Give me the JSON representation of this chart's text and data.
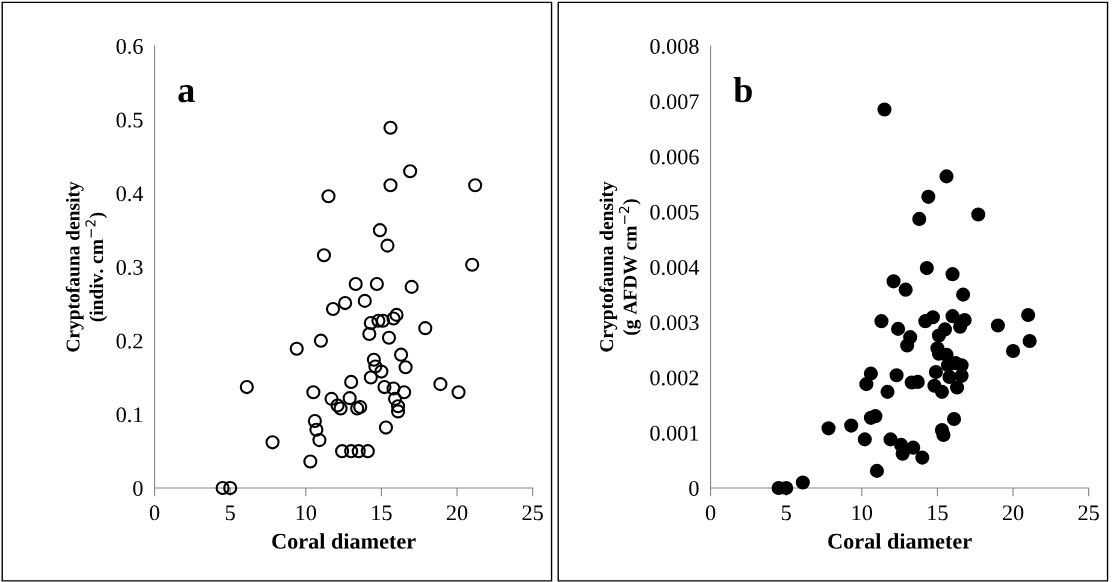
{
  "chart_data": [
    {
      "type": "scatter",
      "xlabel": "Coral diameter",
      "ylabel": "Cryptofauna density\n(indiv. cm$^{−2}$)",
      "annotations": [
        "a"
      ],
      "marker": "circle-open",
      "grid": false,
      "xlim": [
        0,
        25
      ],
      "xticks": [
        0,
        5,
        10,
        15,
        20,
        25
      ],
      "ylim": [
        0,
        0.6
      ],
      "yticks": [
        0,
        0.1,
        0.2,
        0.3,
        0.4,
        0.5,
        0.6
      ],
      "series": [
        {
          "color": "#000000",
          "x": [
            4.5,
            5,
            6.1,
            7.8,
            9.4,
            10.3,
            10.5,
            10.6,
            10.7,
            10.9,
            11,
            11.2,
            11.5,
            11.7,
            11.8,
            12.1,
            12.3,
            12.4,
            12.6,
            12.9,
            13,
            13,
            13.3,
            13.4,
            13.5,
            13.6,
            13.9,
            14.1,
            14.2,
            14.3,
            14.3,
            14.5,
            14.6,
            14.7,
            14.8,
            14.9,
            15,
            15.1,
            15.2,
            15.3,
            15.4,
            15.5,
            15.6,
            15.6,
            15.8,
            15.8,
            15.9,
            16,
            16.1,
            16.1,
            16.3,
            16.5,
            16.6,
            16.9,
            17,
            17.9,
            18.9,
            20.1,
            21,
            21.2
          ],
          "values": [
            0,
            0,
            0.137,
            0.062,
            0.189,
            0.036,
            0.13,
            0.091,
            0.079,
            0.065,
            0.2,
            0.316,
            0.396,
            0.121,
            0.243,
            0.112,
            0.108,
            0.05,
            0.251,
            0.122,
            0.144,
            0.05,
            0.277,
            0.108,
            0.05,
            0.11,
            0.254,
            0.05,
            0.209,
            0.224,
            0.15,
            0.174,
            0.165,
            0.277,
            0.227,
            0.35,
            0.158,
            0.227,
            0.137,
            0.082,
            0.329,
            0.204,
            0.489,
            0.411,
            0.23,
            0.135,
            0.121,
            0.235,
            0.111,
            0.104,
            0.181,
            0.13,
            0.164,
            0.43,
            0.273,
            0.217,
            0.141,
            0.13,
            0.303,
            0.411
          ]
        }
      ]
    },
    {
      "type": "scatter",
      "xlabel": "Coral diameter",
      "ylabel": "Cryptofauna density\n(g AFDW cm$^{−2}$)",
      "annotations": [
        "b"
      ],
      "marker": "circle",
      "grid": false,
      "xlim": [
        0,
        25
      ],
      "xticks": [
        0,
        5,
        10,
        15,
        20,
        25
      ],
      "ylim": [
        0,
        0.008
      ],
      "yticks": [
        0,
        0.001,
        0.002,
        0.003,
        0.004,
        0.005,
        0.006,
        0.007,
        0.008
      ],
      "series": [
        {
          "color": "#000000",
          "x": [
            4.5,
            5,
            6.1,
            7.8,
            9.3,
            10.2,
            10.3,
            10.6,
            10.6,
            10.9,
            11,
            11.3,
            11.5,
            11.7,
            11.9,
            12.1,
            12.3,
            12.4,
            12.6,
            12.7,
            12.9,
            13,
            13.2,
            13.3,
            13.4,
            13.7,
            13.8,
            14,
            14.2,
            14.3,
            14.4,
            14.7,
            14.8,
            14.9,
            15,
            15.1,
            15.1,
            15.3,
            15.3,
            15.4,
            15.5,
            15.6,
            15.6,
            15.7,
            15.8,
            16,
            16,
            16.1,
            16.2,
            16.3,
            16.5,
            16.6,
            16.6,
            16.7,
            16.8,
            17.7,
            19,
            20,
            21,
            21.1
          ],
          "values": [
            0,
            0,
            0.0001,
            0.00108,
            0.00113,
            0.00088,
            0.00188,
            0.00207,
            0.00127,
            0.0013,
            0.00031,
            0.00302,
            0.00685,
            0.00174,
            0.00088,
            0.00374,
            0.00204,
            0.00288,
            0.00078,
            0.00062,
            0.00359,
            0.00258,
            0.00273,
            0.00191,
            0.00073,
            0.00192,
            0.00487,
            0.00055,
            0.00302,
            0.00398,
            0.00527,
            0.00309,
            0.00185,
            0.0021,
            0.00253,
            0.00243,
            0.00276,
            0.00174,
            0.00105,
            0.00096,
            0.00287,
            0.00241,
            0.00564,
            0.00222,
            0.00201,
            0.00311,
            0.00387,
            0.00125,
            0.00226,
            0.00182,
            0.00292,
            0.00222,
            0.00203,
            0.0035,
            0.00304,
            0.00495,
            0.00294,
            0.00248,
            0.00313,
            0.00266
          ]
        }
      ]
    }
  ]
}
